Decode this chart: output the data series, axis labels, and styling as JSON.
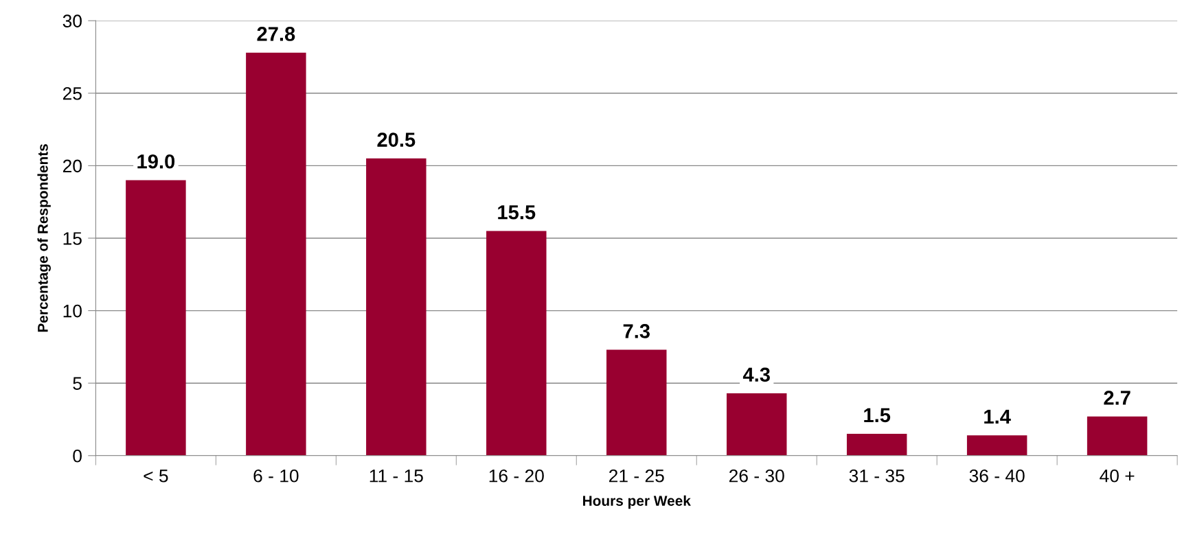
{
  "chart_data": {
    "type": "bar",
    "xlabel": "Hours per Week",
    "ylabel": "Percentage of Respondents",
    "categories": [
      "< 5",
      "6 - 10",
      "11 - 15",
      "16 - 20",
      "21 - 25",
      "26 - 30",
      "31 - 35",
      "36 - 40",
      "40 +"
    ],
    "values": [
      19.0,
      27.8,
      20.5,
      15.5,
      7.3,
      4.3,
      1.5,
      1.4,
      2.7
    ],
    "value_labels": [
      "19.0",
      "27.8",
      "20.5",
      "15.5",
      "7.3",
      "4.3",
      "1.5",
      "1.4",
      "2.7"
    ],
    "color": "#990030",
    "ylim": [
      0,
      30
    ],
    "yticks": [
      0,
      5,
      10,
      15,
      20,
      25,
      30
    ],
    "grid": "y"
  }
}
